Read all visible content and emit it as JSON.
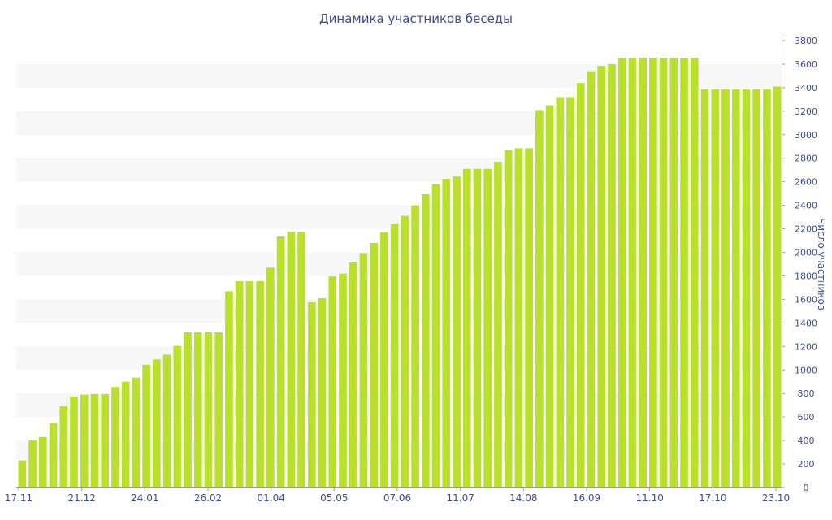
{
  "chart_data": {
    "type": "bar",
    "title": "Динамика участников беседы",
    "ylabel": "Число участников",
    "xlabel": "",
    "ylim": [
      0,
      3800
    ],
    "y_ticks": [
      0,
      200,
      400,
      600,
      800,
      1000,
      1200,
      1400,
      1600,
      1800,
      2000,
      2200,
      2400,
      2600,
      2800,
      3000,
      3200,
      3400,
      3600,
      3800
    ],
    "y_axis_position": "right",
    "grid": "alternating horizontal bands",
    "x_tick_labels": [
      "17.11",
      "21.12",
      "24.01",
      "26.02",
      "01.04",
      "05.05",
      "07.06",
      "11.07",
      "14.08",
      "16.09",
      "11.10",
      "17.10",
      "23.10"
    ],
    "values": [
      230,
      400,
      430,
      550,
      690,
      775,
      790,
      795,
      795,
      855,
      900,
      935,
      1045,
      1090,
      1130,
      1205,
      1320,
      1320,
      1320,
      1320,
      1670,
      1755,
      1755,
      1755,
      1870,
      2135,
      2175,
      2175,
      1575,
      1610,
      1795,
      1820,
      1915,
      1995,
      2080,
      2170,
      2240,
      2310,
      2400,
      2495,
      2580,
      2625,
      2645,
      2710,
      2710,
      2710,
      2770,
      2870,
      2885,
      2885,
      3210,
      3250,
      3320,
      3320,
      3440,
      3540,
      3585,
      3600,
      3655,
      3655,
      3655,
      3655,
      3655,
      3655,
      3655,
      3655,
      3385,
      3385,
      3385,
      3385,
      3385,
      3385,
      3385,
      3410
    ],
    "colors": {
      "bar": "#b8e02c",
      "band": "#f7f7f7",
      "axis_text": "#3d4f8f",
      "axis_line": "#999999"
    }
  }
}
